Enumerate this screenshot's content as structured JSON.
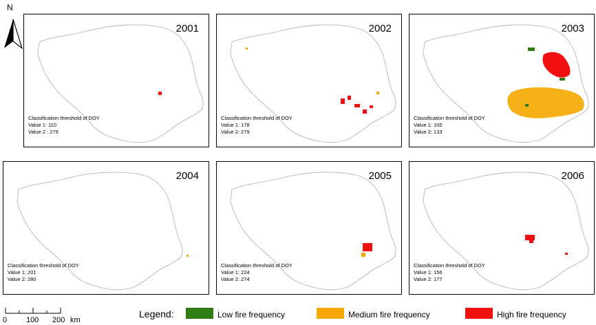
{
  "north_arrow": {
    "label": "N"
  },
  "scale_bar": {
    "ticks": [
      "0",
      "100",
      "200"
    ],
    "unit": "km"
  },
  "panels": [
    {
      "year": "2001",
      "threshold_title": "Classification threshold of DOY",
      "value1": "Value 1: 110",
      "value2": "Value 2 : 279"
    },
    {
      "year": "2002",
      "threshold_title": "Classification threshold of DOY",
      "value1": "Value 1: 178",
      "value2": "Value 2: 279"
    },
    {
      "year": "2003",
      "threshold_title": "Classification threshold of DOY",
      "value1": "Value 1: 105",
      "value2": "Value 2: 133"
    },
    {
      "year": "2004",
      "threshold_title": "Classification threshold of DOY",
      "value1": "Value 1: 201",
      "value2": "Value 2: 280"
    },
    {
      "year": "2005",
      "threshold_title": "Classification threshold of DOY",
      "value1": "Value 1: 224",
      "value2": "Value 2: 274"
    },
    {
      "year": "2006",
      "threshold_title": "Classification threshold of DOY",
      "value1": "Value 1: 156",
      "value2": "Value 2: 177"
    }
  ],
  "legend": {
    "title": "Legend:",
    "items": [
      {
        "label": "Low fire frequency",
        "color": "#2e7d12"
      },
      {
        "label": "Medium fire frequency",
        "color": "#f5a800"
      },
      {
        "label": "High fire frequency",
        "color": "#f01010"
      }
    ]
  }
}
